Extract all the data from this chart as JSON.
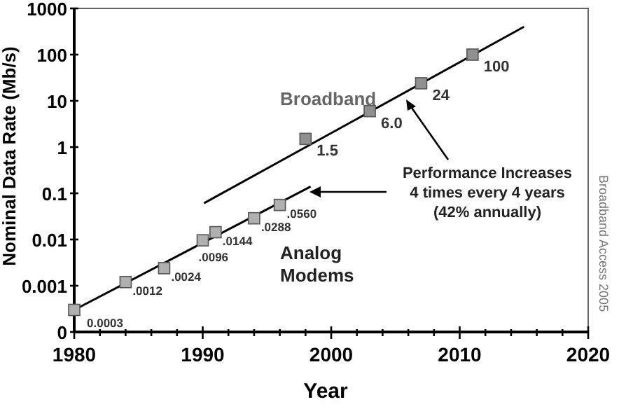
{
  "chart_data": {
    "type": "scatter",
    "xlabel": "Year",
    "ylabel": "Nominal Data Rate (Mb/s)",
    "log": "y",
    "marker": "square",
    "grid": false,
    "xlim": [
      1980,
      2020
    ],
    "xticks": [
      1980,
      {
        "value": 1982,
        "label": null
      },
      {
        "value": 1984,
        "label": null
      },
      {
        "value": 1986,
        "label": null
      },
      {
        "value": 1988,
        "label": null
      },
      1990,
      {
        "value": 1992,
        "label": null
      },
      {
        "value": 1994,
        "label": null
      },
      {
        "value": 1996,
        "label": null
      },
      {
        "value": 1998,
        "label": null
      },
      2000,
      {
        "value": 2002,
        "label": null
      },
      {
        "value": 2004,
        "label": null
      },
      {
        "value": 2006,
        "label": null
      },
      {
        "value": 2008,
        "label": null
      },
      2010,
      {
        "value": 2012,
        "label": null
      },
      {
        "value": 2014,
        "label": null
      },
      {
        "value": 2016,
        "label": null
      },
      {
        "value": 2018,
        "label": null
      },
      2020
    ],
    "ylim": [
      0.0001,
      1000
    ],
    "yticks": [
      {
        "value": 0.0001,
        "label": "0"
      },
      0.001,
      0.01,
      0.1,
      1,
      10,
      100,
      1000
    ],
    "series": [
      {
        "name": "Analog\nModems",
        "color": "#b0b0b0",
        "x": [
          1980,
          1984,
          1987,
          1990,
          1991,
          1994,
          1996
        ],
        "values": [
          0.0003,
          0.0012,
          0.0024,
          0.0096,
          0.0144,
          0.0288,
          0.056
        ],
        "value_labels": [
          "0.0003",
          ".0012",
          ".0024",
          ".0096",
          ".0144",
          ".0288",
          ".0560"
        ]
      },
      {
        "name": "Broadband",
        "color": "#909090",
        "x": [
          1998,
          2003,
          2007,
          2011
        ],
        "values": [
          1.5,
          6.0,
          24,
          100
        ],
        "value_labels": [
          "1.5",
          "6.0",
          "24",
          "100"
        ]
      },
      {
        "type": "line",
        "color": "#000000",
        "marker": "none",
        "x": [
          1980,
          1998.4
        ],
        "values": [
          0.0003,
          0.14
        ]
      },
      {
        "type": "line",
        "color": "#000000",
        "marker": "none",
        "x": [
          1990.1,
          2015
        ],
        "values": [
          0.061,
          400
        ]
      }
    ],
    "annotations": [
      "Performance Increases\n4 times every 4 years\n(42% annually)",
      "Broadband Access 2005"
    ]
  }
}
